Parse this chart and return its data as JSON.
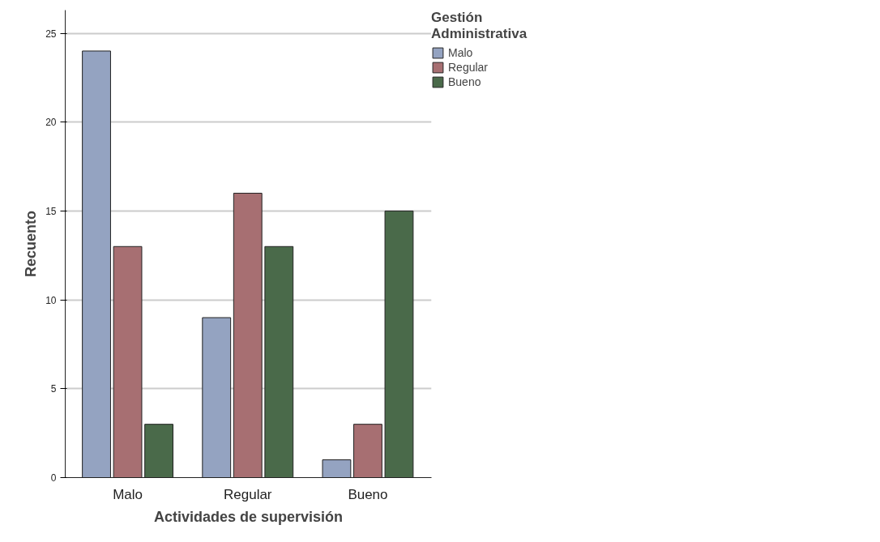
{
  "chart_data": {
    "type": "bar",
    "xlabel": "Actividades de supervisión",
    "ylabel": "Recuento",
    "legend_title": "Gestión Administrativa",
    "categories": [
      "Malo",
      "Regular",
      "Bueno"
    ],
    "series": [
      {
        "name": "Malo",
        "color": "#94a3c1",
        "values": [
          24,
          9,
          1
        ]
      },
      {
        "name": "Regular",
        "color": "#a76f72",
        "values": [
          13,
          16,
          3
        ]
      },
      {
        "name": "Bueno",
        "color": "#4a6a4a",
        "values": [
          3,
          13,
          15
        ]
      }
    ],
    "ylim": [
      0,
      26.3
    ],
    "yticks": [
      0,
      5,
      10,
      15,
      20,
      25
    ],
    "grid": "y",
    "legend": "top right"
  }
}
